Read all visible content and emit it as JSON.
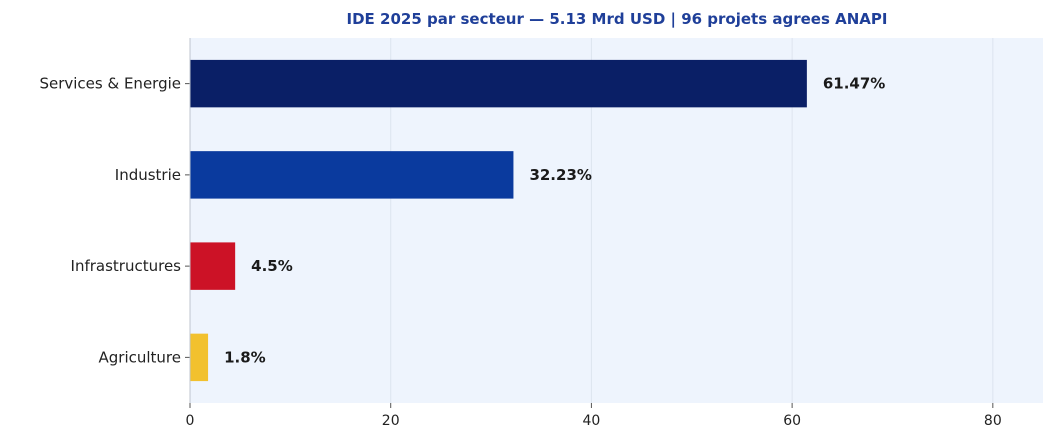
{
  "chart_data": {
    "type": "bar",
    "orientation": "horizontal",
    "title": "IDE 2025 par secteur — 5.13 Mrd USD | 96 projets agrees ANAPI",
    "categories": [
      "Services & Energie",
      "Industrie",
      "Infrastructures",
      "Agriculture"
    ],
    "values": [
      61.47,
      32.23,
      4.5,
      1.8
    ],
    "value_labels": [
      "61.47%",
      "32.23%",
      "4.5%",
      "1.8%"
    ],
    "bar_colors": [
      "#0a1f66",
      "#0a3a9e",
      "#cc1226",
      "#f2c12e"
    ],
    "xlim": [
      0,
      85
    ],
    "xticks": [
      0,
      20,
      40,
      60,
      80
    ],
    "xlabel": "",
    "ylabel": "",
    "grid": true,
    "legend": "none",
    "title_color": "#1f3f99",
    "background_color": "#eef4fd"
  }
}
